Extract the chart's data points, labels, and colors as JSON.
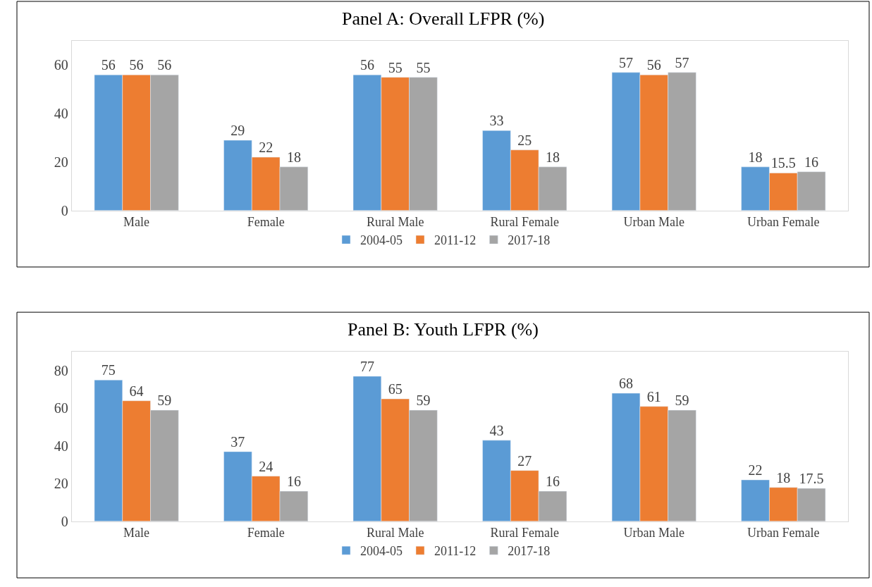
{
  "chart_data": [
    {
      "type": "bar",
      "title": "Panel A: Overall LFPR (%)",
      "categories": [
        "Male",
        "Female",
        "Rural Male",
        "Rural Female",
        "Urban Male",
        "Urban Female"
      ],
      "series": [
        {
          "name": "2004-05",
          "color": "#5b9bd5",
          "values": [
            56,
            29,
            56,
            33,
            57,
            18
          ]
        },
        {
          "name": "2011-12",
          "color": "#ed7d31",
          "values": [
            56,
            22,
            55,
            25,
            56,
            15.5
          ]
        },
        {
          "name": "2017-18",
          "color": "#a5a5a5",
          "values": [
            56,
            18,
            55,
            18,
            57,
            16
          ]
        }
      ],
      "ylim": [
        0,
        70
      ],
      "yticks": [
        0,
        20,
        40,
        60
      ],
      "legend": "bottom",
      "data_labels": true
    },
    {
      "type": "bar",
      "title": "Panel B: Youth LFPR (%)",
      "categories": [
        "Male",
        "Female",
        "Rural Male",
        "Rural Female",
        "Urban Male",
        "Urban Female"
      ],
      "series": [
        {
          "name": "2004-05",
          "color": "#5b9bd5",
          "values": [
            75,
            37,
            77,
            43,
            68,
            22
          ]
        },
        {
          "name": "2011-12",
          "color": "#ed7d31",
          "values": [
            64,
            24,
            65,
            27,
            61,
            18
          ]
        },
        {
          "name": "2017-18",
          "color": "#a5a5a5",
          "values": [
            59,
            16,
            59,
            16,
            59,
            17.5
          ]
        }
      ],
      "ylim": [
        0,
        90
      ],
      "yticks": [
        0,
        20,
        40,
        60,
        80
      ],
      "legend": "bottom",
      "data_labels": true
    }
  ]
}
